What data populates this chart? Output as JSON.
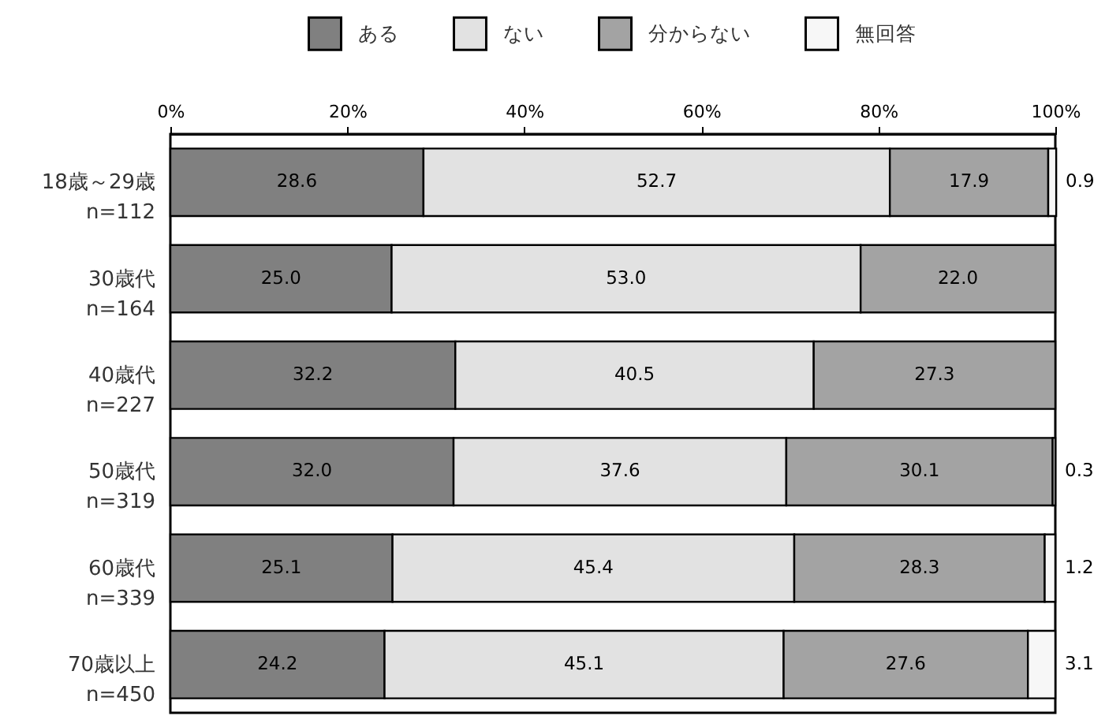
{
  "chart_data": {
    "type": "bar",
    "orientation": "horizontal",
    "stacked": true,
    "categories": [
      "18歳～29歳\nn=112",
      "30歳代\nn=164",
      "40歳代\nn=227",
      "50歳代\nn=319",
      "60歳代\nn=339",
      "70歳以上\nn=450"
    ],
    "series": [
      {
        "name": "ある",
        "color": "#808080",
        "values": [
          28.6,
          25.0,
          32.2,
          32.0,
          25.1,
          24.2
        ],
        "value_labels": [
          "28.6",
          "25.0",
          "32.2",
          "32.0",
          "25.1",
          "24.2"
        ]
      },
      {
        "name": "ない",
        "color": "#e2e2e2",
        "values": [
          52.7,
          53.0,
          40.5,
          37.6,
          45.4,
          45.1
        ],
        "value_labels": [
          "52.7",
          "53.0",
          "40.5",
          "37.6",
          "45.4",
          "45.1"
        ]
      },
      {
        "name": "分からない",
        "color": "#a3a3a3",
        "values": [
          17.9,
          22.0,
          27.3,
          30.1,
          28.3,
          27.6
        ],
        "value_labels": [
          "17.9",
          "22.0",
          "27.3",
          "30.1",
          "28.3",
          "27.6"
        ]
      },
      {
        "name": "無回答",
        "color": "#f7f7f7",
        "values": [
          0.9,
          null,
          null,
          0.3,
          1.2,
          3.1
        ],
        "value_labels": [
          "0.9",
          null,
          null,
          "0.3",
          "1.2",
          "3.1"
        ]
      }
    ],
    "xlim": [
      0,
      100
    ],
    "xticks": [
      {
        "value": 0,
        "label": "0%"
      },
      {
        "value": 20,
        "label": "20%"
      },
      {
        "value": 40,
        "label": "40%"
      },
      {
        "value": 60,
        "label": "60%"
      },
      {
        "value": 80,
        "label": "80%"
      },
      {
        "value": 100,
        "label": "100%"
      }
    ],
    "legend": "top"
  }
}
